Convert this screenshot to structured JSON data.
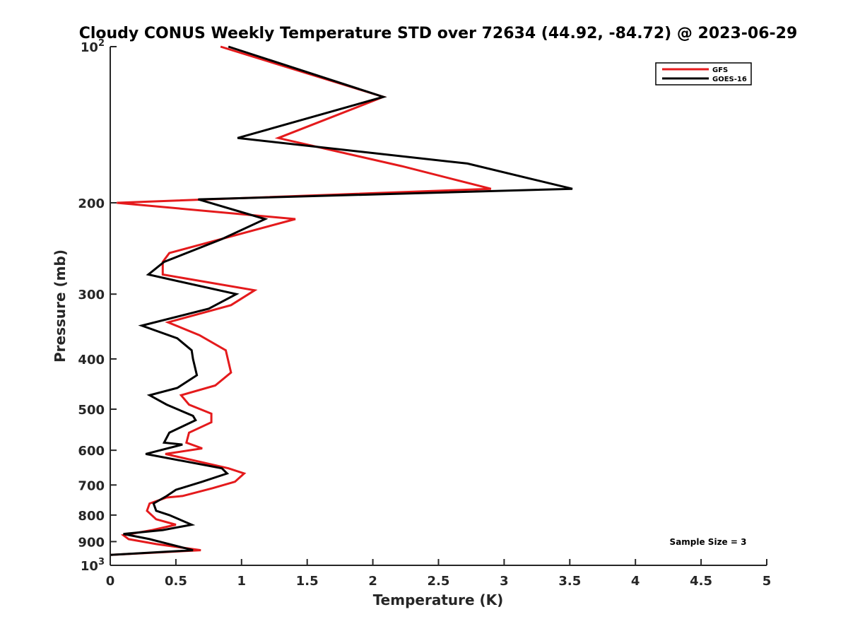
{
  "chart_data": {
    "type": "line",
    "title": "Cloudy CONUS Weekly Temperature STD over 72634 (44.92, -84.72) @ 2023-06-29",
    "xlabel": "Temperature (K)",
    "ylabel": "Pressure (mb)",
    "xlim": [
      0,
      5
    ],
    "ylim": [
      100,
      1000
    ],
    "y_scale": "log",
    "y_reversed": true,
    "grid": false,
    "legend_position": "top-right",
    "x_ticks": [
      "0",
      "0.5",
      "1",
      "1.5",
      "2",
      "2.5",
      "3",
      "3.5",
      "4",
      "4.5",
      "5"
    ],
    "x_tick_values": [
      0,
      0.5,
      1,
      1.5,
      2,
      2.5,
      3,
      3.5,
      4,
      4.5,
      5
    ],
    "y_ticks": [
      {
        "value": 100,
        "base": "10",
        "exp": "2"
      },
      {
        "value": 200,
        "label": "200"
      },
      {
        "value": 300,
        "label": "300"
      },
      {
        "value": 400,
        "label": "400"
      },
      {
        "value": 500,
        "label": "500"
      },
      {
        "value": 600,
        "label": "600"
      },
      {
        "value": 700,
        "label": "700"
      },
      {
        "value": 800,
        "label": "800"
      },
      {
        "value": 900,
        "label": "900"
      },
      {
        "value": 1000,
        "base": "10",
        "exp": "3"
      }
    ],
    "series": [
      {
        "name": "GFS",
        "color": "#e41a1c",
        "points": [
          [
            0.84,
            100
          ],
          [
            2.08,
            125
          ],
          [
            1.28,
            150
          ],
          [
            2.22,
            170
          ],
          [
            2.9,
            188
          ],
          [
            0.05,
            200
          ],
          [
            1.41,
            215
          ],
          [
            0.45,
            250
          ],
          [
            0.4,
            260
          ],
          [
            0.4,
            275
          ],
          [
            1.1,
            295
          ],
          [
            0.92,
            315
          ],
          [
            0.44,
            340
          ],
          [
            0.68,
            360
          ],
          [
            0.88,
            385
          ],
          [
            0.92,
            425
          ],
          [
            0.8,
            450
          ],
          [
            0.54,
            470
          ],
          [
            0.6,
            490
          ],
          [
            0.77,
            510
          ],
          [
            0.77,
            530
          ],
          [
            0.6,
            555
          ],
          [
            0.58,
            580
          ],
          [
            0.7,
            595
          ],
          [
            0.42,
            610
          ],
          [
            0.9,
            650
          ],
          [
            1.02,
            665
          ],
          [
            0.95,
            690
          ],
          [
            0.78,
            710
          ],
          [
            0.55,
            735
          ],
          [
            0.43,
            740
          ],
          [
            0.3,
            760
          ],
          [
            0.28,
            785
          ],
          [
            0.35,
            815
          ],
          [
            0.5,
            835
          ],
          [
            0.32,
            855
          ],
          [
            0.1,
            875
          ],
          [
            0.14,
            890
          ],
          [
            0.35,
            910
          ],
          [
            0.69,
            935
          ],
          [
            0.0,
            955
          ]
        ]
      },
      {
        "name": "GOES-16",
        "color": "#000000",
        "points": [
          [
            0.9,
            100
          ],
          [
            2.08,
            125
          ],
          [
            0.97,
            150
          ],
          [
            2.72,
            168
          ],
          [
            3.52,
            188
          ],
          [
            0.67,
            197
          ],
          [
            1.18,
            215
          ],
          [
            0.85,
            235
          ],
          [
            0.41,
            260
          ],
          [
            0.29,
            275
          ],
          [
            0.96,
            300
          ],
          [
            0.75,
            320
          ],
          [
            0.24,
            345
          ],
          [
            0.51,
            365
          ],
          [
            0.62,
            385
          ],
          [
            0.63,
            400
          ],
          [
            0.66,
            430
          ],
          [
            0.51,
            455
          ],
          [
            0.3,
            470
          ],
          [
            0.43,
            490
          ],
          [
            0.63,
            515
          ],
          [
            0.65,
            525
          ],
          [
            0.45,
            555
          ],
          [
            0.41,
            580
          ],
          [
            0.55,
            585
          ],
          [
            0.27,
            610
          ],
          [
            0.85,
            650
          ],
          [
            0.89,
            665
          ],
          [
            0.7,
            690
          ],
          [
            0.5,
            715
          ],
          [
            0.43,
            735
          ],
          [
            0.33,
            760
          ],
          [
            0.35,
            785
          ],
          [
            0.45,
            800
          ],
          [
            0.62,
            835
          ],
          [
            0.4,
            855
          ],
          [
            0.1,
            870
          ],
          [
            0.3,
            890
          ],
          [
            0.63,
            935
          ],
          [
            0.0,
            955
          ]
        ]
      }
    ],
    "annotation": "Sample Size = 3"
  }
}
